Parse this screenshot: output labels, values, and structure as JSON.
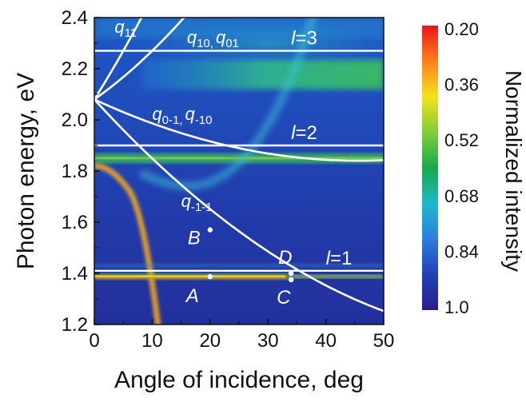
{
  "chart_data": {
    "type": "heatmap",
    "title": "",
    "xlabel": "Angle of incidence, deg",
    "ylabel": "Photon energy, eV",
    "xlim": [
      0,
      50
    ],
    "ylim": [
      1.2,
      2.4
    ],
    "x_ticks": [
      "0",
      "10",
      "20",
      "30",
      "40",
      "50"
    ],
    "y_ticks": [
      "1.2",
      "1.4",
      "1.6",
      "1.8",
      "2.0",
      "2.2",
      "2.4"
    ],
    "colorbar": {
      "title": "Normalized intensity",
      "ticks": [
        "0.20",
        "0.36",
        "0.52",
        "0.68",
        "0.84",
        "1.0"
      ],
      "colors": [
        "#e8161b",
        "#ff7f1a",
        "#f3e31a",
        "#7fcf3a",
        "#19a94d",
        "#1fb8c8",
        "#2a7fe0",
        "#2340b8",
        "#2a1f8e"
      ]
    },
    "horizontal_lines": [
      {
        "label_prefix": "l",
        "label_value": "=1",
        "y": 1.41
      },
      {
        "label_prefix": "l",
        "label_value": "=2",
        "y": 1.9
      },
      {
        "label_prefix": "l",
        "label_value": "=3",
        "y": 2.27
      }
    ],
    "curve_labels": [
      {
        "base": "q",
        "sub": "11",
        "x": 3.5,
        "y": 2.34
      },
      {
        "base": "q",
        "sub": "10,",
        "base2": "q",
        "sub2": "01",
        "x": 16,
        "y": 2.3
      },
      {
        "base": "q",
        "sub": "0-1,",
        "base2": "q",
        "sub2": "-10",
        "x": 10,
        "y": 2.0
      },
      {
        "base": "q",
        "sub": "-1-1",
        "x": 15,
        "y": 1.66
      }
    ],
    "points": [
      {
        "name": "A",
        "x": 20,
        "y": 1.387
      },
      {
        "name": "B",
        "x": 20,
        "y": 1.57
      },
      {
        "name": "C",
        "x": 34,
        "y": 1.375
      },
      {
        "name": "D",
        "x": 34,
        "y": 1.4
      }
    ]
  }
}
